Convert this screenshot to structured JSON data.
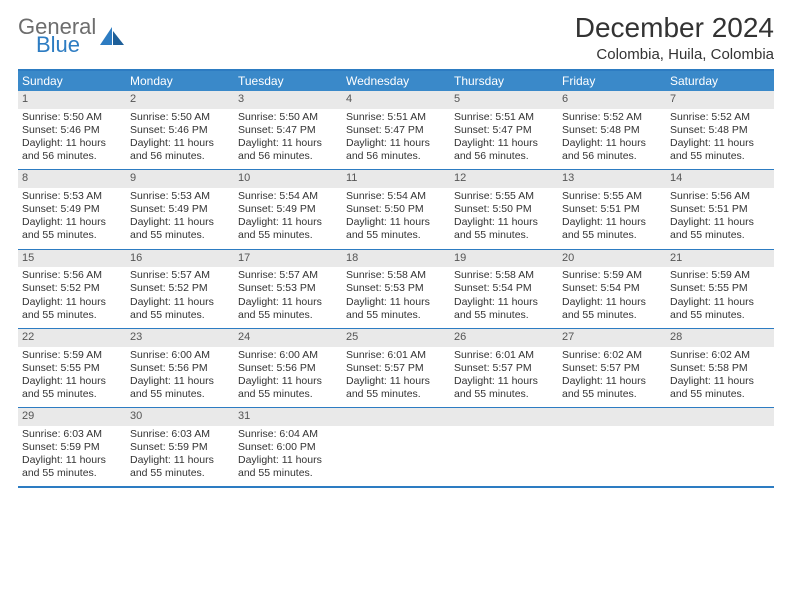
{
  "brand": {
    "word1": "General",
    "word2": "Blue"
  },
  "title": "December 2024",
  "location": "Colombia, Huila, Colombia",
  "colors": {
    "header_bg": "#3a89c9",
    "rule": "#2d7cc2",
    "daynum_bg": "#e9e9e9",
    "text": "#333333",
    "logo_gray": "#6d6d6d",
    "logo_blue": "#2d7cc2"
  },
  "weekdays": [
    "Sunday",
    "Monday",
    "Tuesday",
    "Wednesday",
    "Thursday",
    "Friday",
    "Saturday"
  ],
  "weeks": [
    [
      {
        "n": "1",
        "sr": "5:50 AM",
        "ss": "5:46 PM",
        "dl": "11 hours and 56 minutes."
      },
      {
        "n": "2",
        "sr": "5:50 AM",
        "ss": "5:46 PM",
        "dl": "11 hours and 56 minutes."
      },
      {
        "n": "3",
        "sr": "5:50 AM",
        "ss": "5:47 PM",
        "dl": "11 hours and 56 minutes."
      },
      {
        "n": "4",
        "sr": "5:51 AM",
        "ss": "5:47 PM",
        "dl": "11 hours and 56 minutes."
      },
      {
        "n": "5",
        "sr": "5:51 AM",
        "ss": "5:47 PM",
        "dl": "11 hours and 56 minutes."
      },
      {
        "n": "6",
        "sr": "5:52 AM",
        "ss": "5:48 PM",
        "dl": "11 hours and 56 minutes."
      },
      {
        "n": "7",
        "sr": "5:52 AM",
        "ss": "5:48 PM",
        "dl": "11 hours and 55 minutes."
      }
    ],
    [
      {
        "n": "8",
        "sr": "5:53 AM",
        "ss": "5:49 PM",
        "dl": "11 hours and 55 minutes."
      },
      {
        "n": "9",
        "sr": "5:53 AM",
        "ss": "5:49 PM",
        "dl": "11 hours and 55 minutes."
      },
      {
        "n": "10",
        "sr": "5:54 AM",
        "ss": "5:49 PM",
        "dl": "11 hours and 55 minutes."
      },
      {
        "n": "11",
        "sr": "5:54 AM",
        "ss": "5:50 PM",
        "dl": "11 hours and 55 minutes."
      },
      {
        "n": "12",
        "sr": "5:55 AM",
        "ss": "5:50 PM",
        "dl": "11 hours and 55 minutes."
      },
      {
        "n": "13",
        "sr": "5:55 AM",
        "ss": "5:51 PM",
        "dl": "11 hours and 55 minutes."
      },
      {
        "n": "14",
        "sr": "5:56 AM",
        "ss": "5:51 PM",
        "dl": "11 hours and 55 minutes."
      }
    ],
    [
      {
        "n": "15",
        "sr": "5:56 AM",
        "ss": "5:52 PM",
        "dl": "11 hours and 55 minutes."
      },
      {
        "n": "16",
        "sr": "5:57 AM",
        "ss": "5:52 PM",
        "dl": "11 hours and 55 minutes."
      },
      {
        "n": "17",
        "sr": "5:57 AM",
        "ss": "5:53 PM",
        "dl": "11 hours and 55 minutes."
      },
      {
        "n": "18",
        "sr": "5:58 AM",
        "ss": "5:53 PM",
        "dl": "11 hours and 55 minutes."
      },
      {
        "n": "19",
        "sr": "5:58 AM",
        "ss": "5:54 PM",
        "dl": "11 hours and 55 minutes."
      },
      {
        "n": "20",
        "sr": "5:59 AM",
        "ss": "5:54 PM",
        "dl": "11 hours and 55 minutes."
      },
      {
        "n": "21",
        "sr": "5:59 AM",
        "ss": "5:55 PM",
        "dl": "11 hours and 55 minutes."
      }
    ],
    [
      {
        "n": "22",
        "sr": "5:59 AM",
        "ss": "5:55 PM",
        "dl": "11 hours and 55 minutes."
      },
      {
        "n": "23",
        "sr": "6:00 AM",
        "ss": "5:56 PM",
        "dl": "11 hours and 55 minutes."
      },
      {
        "n": "24",
        "sr": "6:00 AM",
        "ss": "5:56 PM",
        "dl": "11 hours and 55 minutes."
      },
      {
        "n": "25",
        "sr": "6:01 AM",
        "ss": "5:57 PM",
        "dl": "11 hours and 55 minutes."
      },
      {
        "n": "26",
        "sr": "6:01 AM",
        "ss": "5:57 PM",
        "dl": "11 hours and 55 minutes."
      },
      {
        "n": "27",
        "sr": "6:02 AM",
        "ss": "5:57 PM",
        "dl": "11 hours and 55 minutes."
      },
      {
        "n": "28",
        "sr": "6:02 AM",
        "ss": "5:58 PM",
        "dl": "11 hours and 55 minutes."
      }
    ],
    [
      {
        "n": "29",
        "sr": "6:03 AM",
        "ss": "5:59 PM",
        "dl": "11 hours and 55 minutes."
      },
      {
        "n": "30",
        "sr": "6:03 AM",
        "ss": "5:59 PM",
        "dl": "11 hours and 55 minutes."
      },
      {
        "n": "31",
        "sr": "6:04 AM",
        "ss": "6:00 PM",
        "dl": "11 hours and 55 minutes."
      },
      {
        "n": "",
        "empty": true
      },
      {
        "n": "",
        "empty": true
      },
      {
        "n": "",
        "empty": true
      },
      {
        "n": "",
        "empty": true
      }
    ]
  ],
  "labels": {
    "sunrise": "Sunrise:",
    "sunset": "Sunset:",
    "daylight": "Daylight:"
  }
}
